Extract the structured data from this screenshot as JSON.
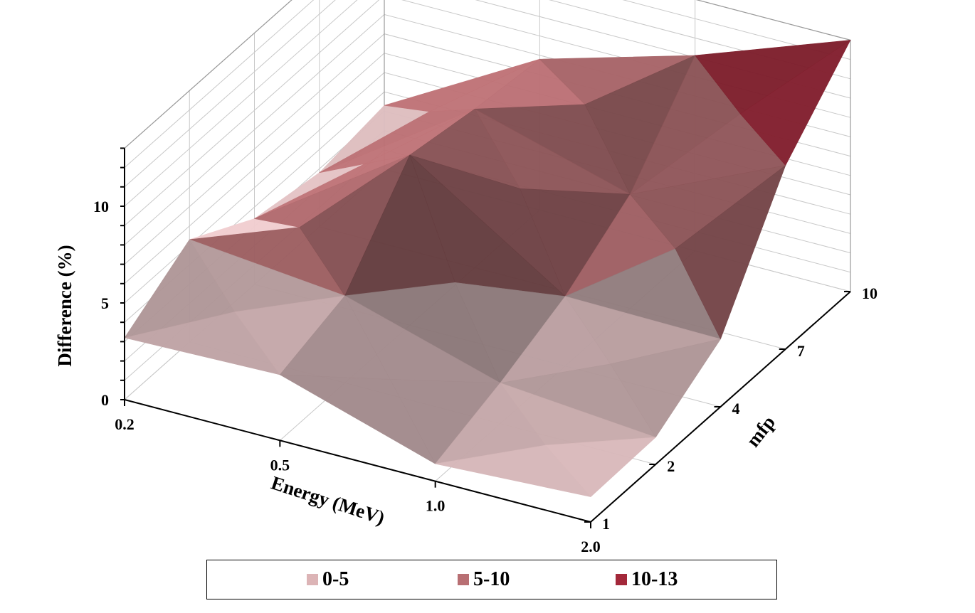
{
  "chart_data": {
    "type": "surface",
    "xlabel": "Energy (MeV)",
    "ylabel": "mfp",
    "zlabel": "Difference (%)",
    "x": [
      "0.2",
      "0.5",
      "1.0",
      "2.0"
    ],
    "y": [
      "1",
      "2",
      "4",
      "7",
      "10"
    ],
    "zticks": [
      "0",
      "5",
      "10"
    ],
    "zlim": [
      0,
      13
    ],
    "values": [
      [
        3.2,
        5.3,
        3.4,
        2.8,
        3.3
      ],
      [
        3.4,
        4.5,
        8.8,
        8.2,
        7.8
      ],
      [
        0.9,
        2.1,
        3.6,
        5.9,
        10.1
      ],
      [
        1.3,
        1.4,
        3.5,
        9.5,
        13.0
      ]
    ],
    "legend": [
      {
        "label": "0-5",
        "color": "#dcb4b6"
      },
      {
        "label": "5-10",
        "color": "#b86f73"
      },
      {
        "label": "10-13",
        "color": "#a3283a"
      }
    ],
    "legend_position": "bottom",
    "grid": true
  }
}
